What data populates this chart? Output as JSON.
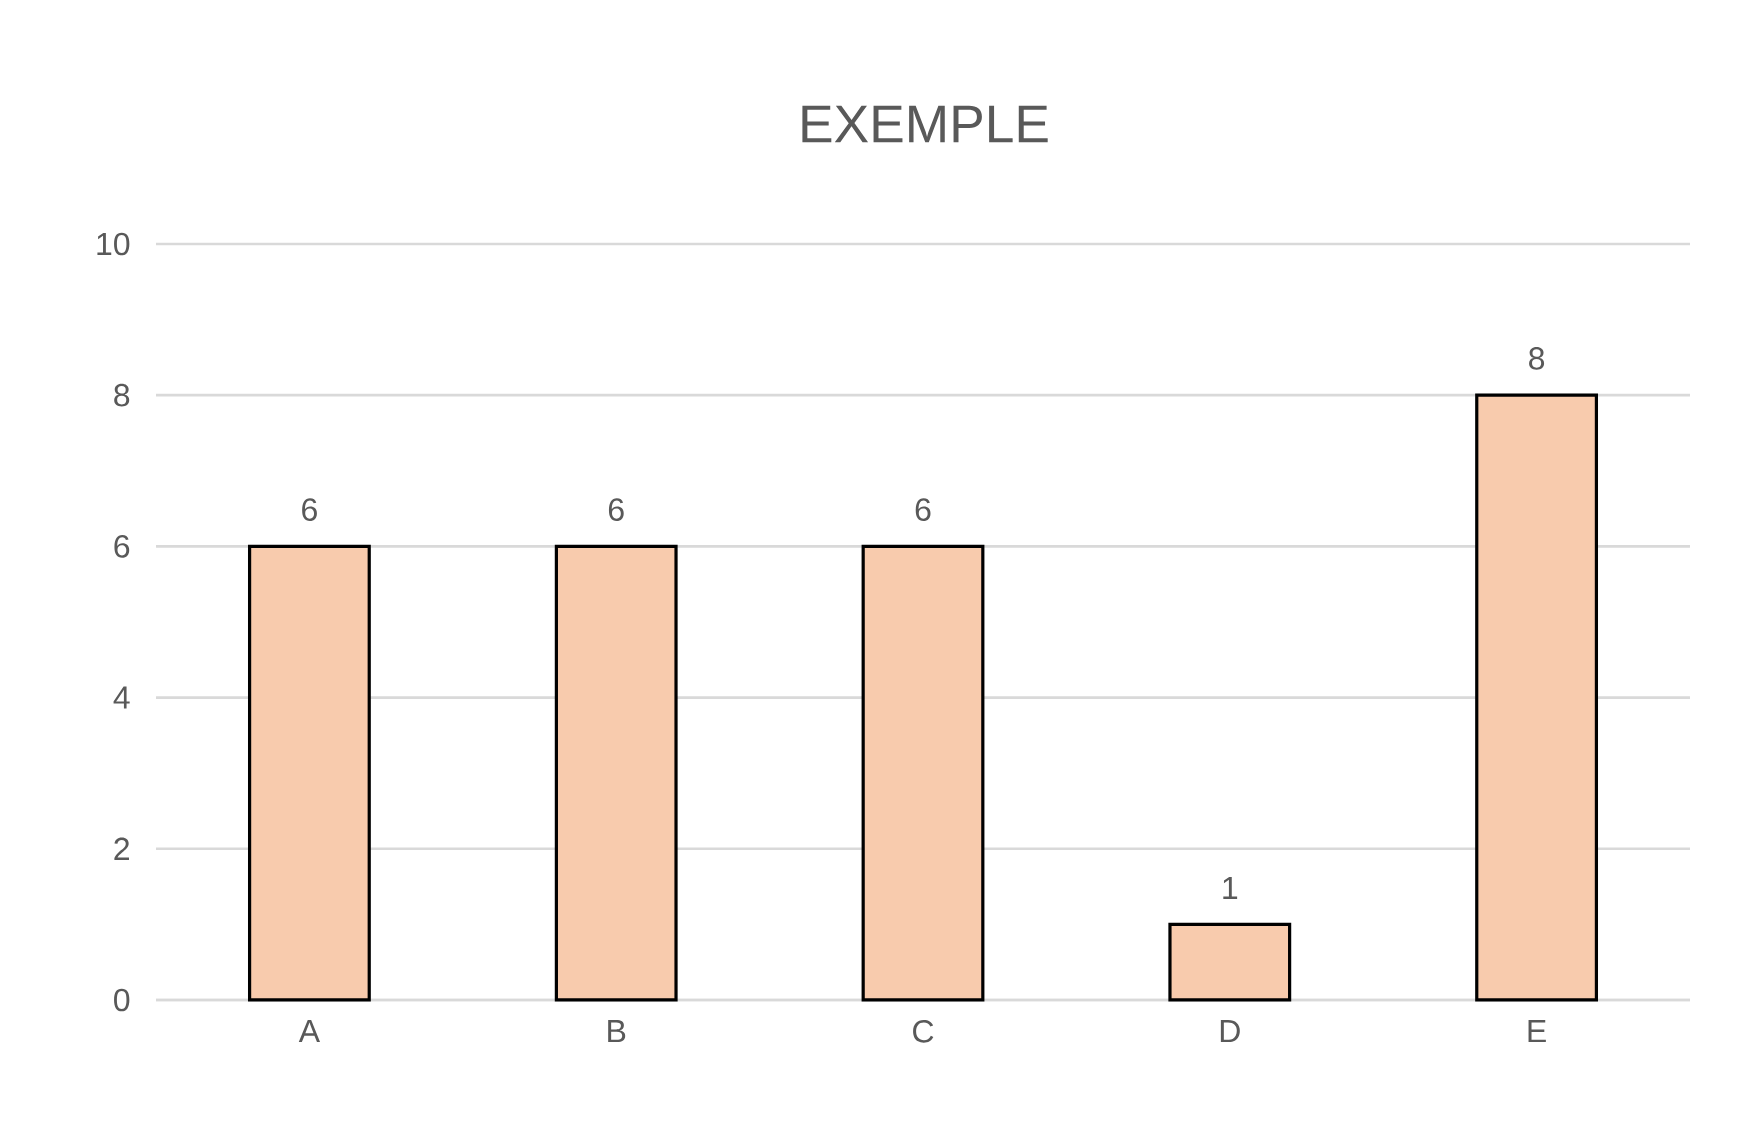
{
  "chart_data": {
    "type": "bar",
    "title": "EXEMPLE",
    "categories": [
      "A",
      "B",
      "C",
      "D",
      "E"
    ],
    "values": [
      6,
      6,
      6,
      1,
      8
    ],
    "color": "#f8cbad",
    "ylim": [
      0,
      10
    ],
    "yticks": [
      0,
      2,
      4,
      6,
      8,
      10
    ],
    "grid": "y",
    "data_labels": true
  }
}
